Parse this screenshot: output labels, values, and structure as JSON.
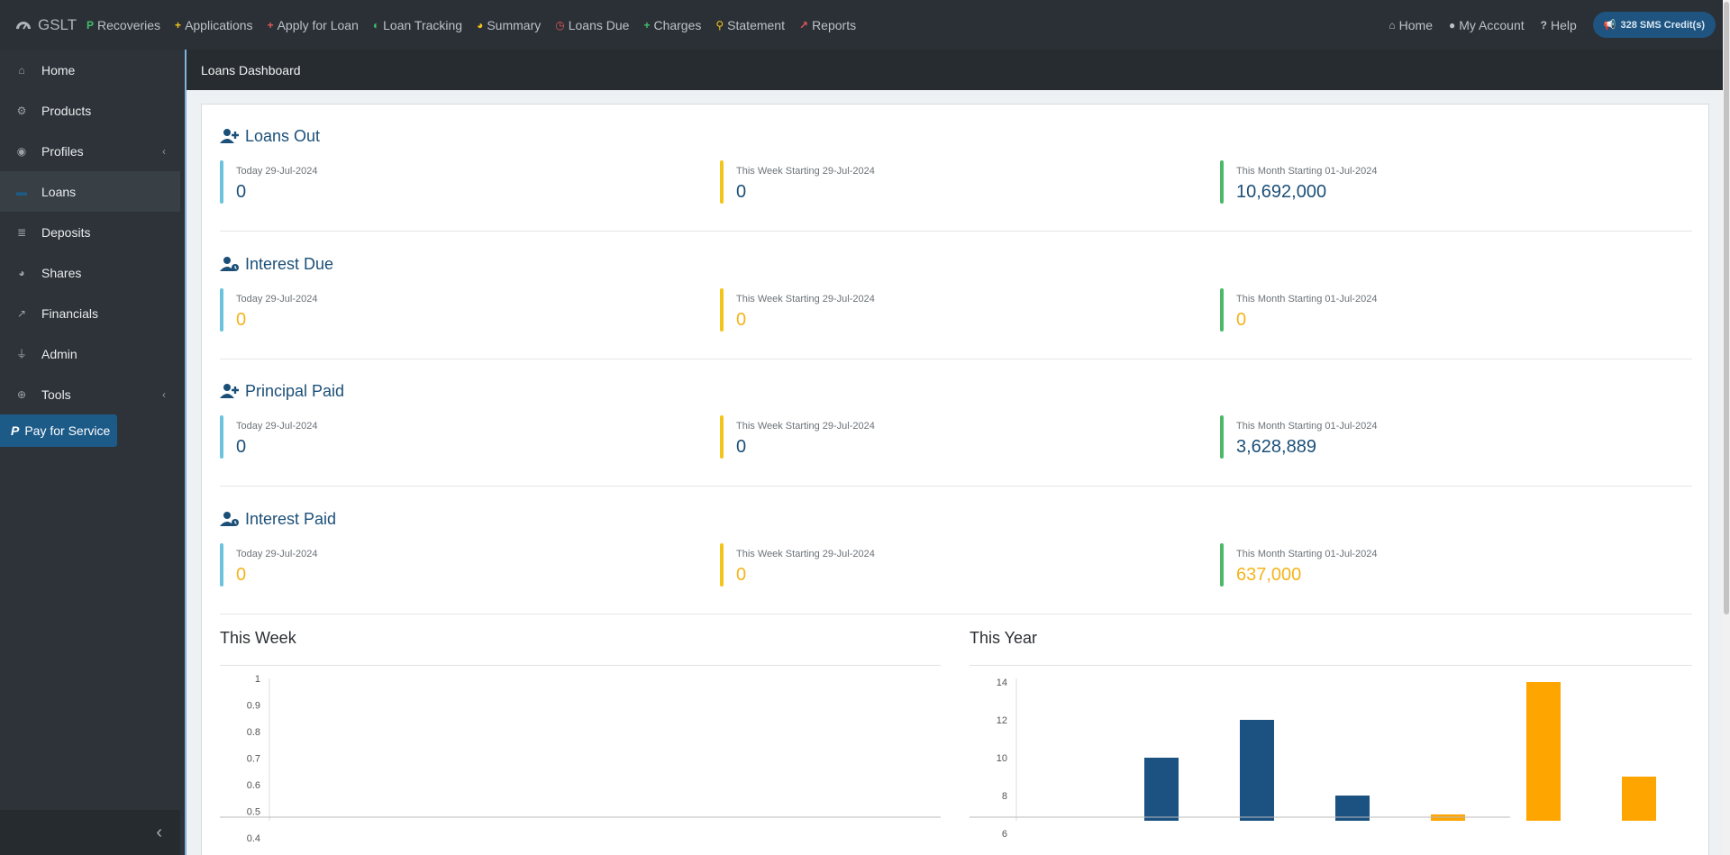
{
  "topbar": {
    "brand": "GSLT",
    "nav": [
      {
        "label": "Recoveries",
        "icon": "paypal-icon",
        "color": "#3fbf6b",
        "glyph": "P"
      },
      {
        "label": "Applications",
        "icon": "user-plus-icon",
        "color": "#f4c41a",
        "glyph": "+"
      },
      {
        "label": "Apply for Loan",
        "icon": "user-plus-icon",
        "color": "#e0565b",
        "glyph": "+"
      },
      {
        "label": "Loan Tracking",
        "icon": "adjust-icon",
        "color": "#3fbf6b",
        "glyph": "◐"
      },
      {
        "label": "Summary",
        "icon": "pie-chart-icon",
        "color": "#f4c41a",
        "glyph": "◕"
      },
      {
        "label": "Loans Due",
        "icon": "clock-icon",
        "color": "#e0565b",
        "glyph": "◷"
      },
      {
        "label": "Charges",
        "icon": "user-plus-icon",
        "color": "#3fbf6b",
        "glyph": "+"
      },
      {
        "label": "Statement",
        "icon": "search-icon",
        "color": "#f4c41a",
        "glyph": "⚲"
      },
      {
        "label": "Reports",
        "icon": "line-chart-icon",
        "color": "#e0565b",
        "glyph": "↗"
      }
    ],
    "right": [
      {
        "label": "Home",
        "icon": "home-icon",
        "glyph": "⌂"
      },
      {
        "label": "My Account",
        "icon": "user-icon",
        "glyph": "●"
      },
      {
        "label": "Help",
        "icon": "question-icon",
        "glyph": "?"
      }
    ],
    "sms": "328 SMS Credit(s)"
  },
  "sidebar": {
    "items": [
      {
        "label": "Home",
        "icon": "home-icon",
        "glyph": "⌂",
        "chevron": false
      },
      {
        "label": "Products",
        "icon": "cogs-icon",
        "glyph": "⚙",
        "chevron": false
      },
      {
        "label": "Profiles",
        "icon": "user-circle-icon",
        "glyph": "◉",
        "chevron": true
      },
      {
        "label": "Loans",
        "icon": "money-icon",
        "glyph": "▬",
        "chevron": false,
        "active": true
      },
      {
        "label": "Deposits",
        "icon": "database-icon",
        "glyph": "≣",
        "chevron": false
      },
      {
        "label": "Shares",
        "icon": "pie-chart-icon",
        "glyph": "◕",
        "chevron": false
      },
      {
        "label": "Financials",
        "icon": "area-chart-icon",
        "glyph": "↗",
        "chevron": false
      },
      {
        "label": "Admin",
        "icon": "plug-icon",
        "glyph": "⏚",
        "chevron": false
      },
      {
        "label": "Tools",
        "icon": "plus-circle-icon",
        "glyph": "⊕",
        "chevron": true
      }
    ],
    "pay_label": "Pay for Service",
    "collapse_glyph": "‹"
  },
  "main": {
    "header": "Loans Dashboard",
    "sections": [
      {
        "title": "Loans Out",
        "icon": "user-plus-icon",
        "stats": [
          {
            "label": "Today 29-Jul-2024",
            "value": "0",
            "color": "blue",
            "orange": false
          },
          {
            "label": "This Week Starting 29-Jul-2024",
            "value": "0",
            "color": "yellow",
            "orange": false
          },
          {
            "label": "This Month Starting 01-Jul-2024",
            "value": "10,692,000",
            "color": "green",
            "orange": false
          }
        ]
      },
      {
        "title": "Interest Due",
        "icon": "user-clock-icon",
        "stats": [
          {
            "label": "Today 29-Jul-2024",
            "value": "0",
            "color": "blue",
            "orange": true
          },
          {
            "label": "This Week Starting 29-Jul-2024",
            "value": "0",
            "color": "yellow",
            "orange": true
          },
          {
            "label": "This Month Starting 01-Jul-2024",
            "value": "0",
            "color": "green",
            "orange": true
          }
        ]
      },
      {
        "title": "Principal Paid",
        "icon": "user-plus-icon",
        "stats": [
          {
            "label": "Today 29-Jul-2024",
            "value": "0",
            "color": "blue",
            "orange": false
          },
          {
            "label": "This Week Starting 29-Jul-2024",
            "value": "0",
            "color": "yellow",
            "orange": false
          },
          {
            "label": "This Month Starting 01-Jul-2024",
            "value": "3,628,889",
            "color": "green",
            "orange": false
          }
        ]
      },
      {
        "title": "Interest Paid",
        "icon": "user-clock-icon",
        "stats": [
          {
            "label": "Today 29-Jul-2024",
            "value": "0",
            "color": "blue",
            "orange": true
          },
          {
            "label": "This Week Starting 29-Jul-2024",
            "value": "0",
            "color": "yellow",
            "orange": true
          },
          {
            "label": "This Month Starting 01-Jul-2024",
            "value": "637,000",
            "color": "green",
            "orange": true
          }
        ]
      }
    ],
    "week_title": "This Week",
    "year_title": "This Year"
  },
  "chart_data": [
    {
      "type": "bar",
      "title": "This Week",
      "yticks": [
        "1",
        "0.9",
        "0.8",
        "0.7",
        "0.6",
        "0.5",
        "0.4"
      ],
      "ylim": [
        0,
        1
      ],
      "series": []
    },
    {
      "type": "bar",
      "title": "This Year",
      "yticks": [
        "14",
        "12",
        "10",
        "8",
        "6"
      ],
      "ylim": [
        0,
        14
      ],
      "bars": [
        {
          "value": 6,
          "color": "#1b5282"
        },
        {
          "value": 10,
          "color": "#1b5282"
        },
        {
          "value": 12,
          "color": "#1b5282"
        },
        {
          "value": 8,
          "color": "#1b5282"
        },
        {
          "value": 7,
          "color": "#ffa500"
        },
        {
          "value": 14,
          "color": "#ffa500"
        },
        {
          "value": 9,
          "color": "#ffa500"
        }
      ]
    }
  ],
  "colors": {
    "accent": "#1b4f78",
    "blue": "#6cc3dc",
    "yellow": "#f4c41a",
    "green": "#4cb86a",
    "orange": "#f4b41a"
  }
}
